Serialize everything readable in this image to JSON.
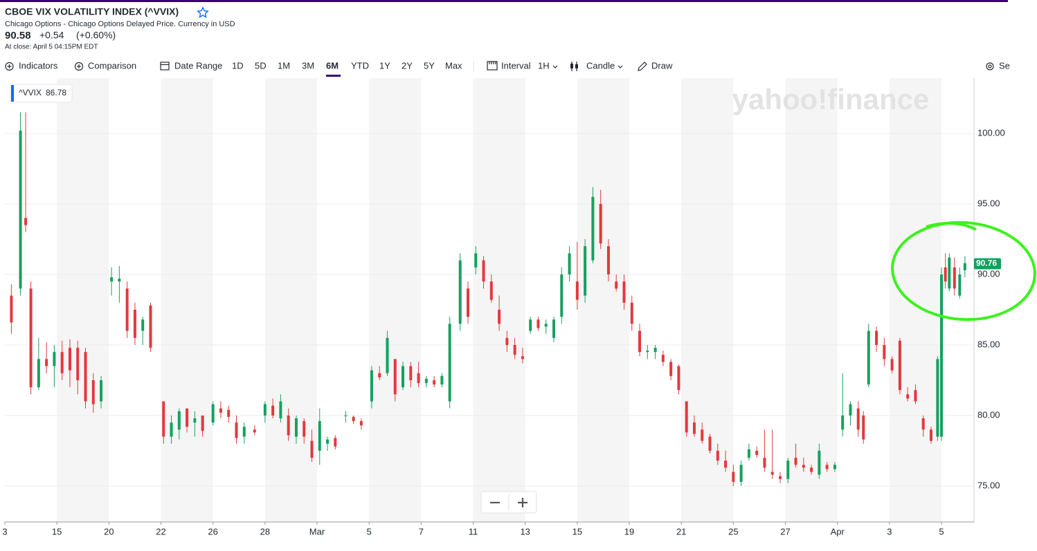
{
  "header": {
    "title": "CBOE VIX VOLATILITY INDEX (^VVIX)",
    "subtitle": "Chicago Options - Chicago Options Delayed Price. Currency in USD",
    "price": "90.58",
    "change": "+0.54",
    "change_pct": "(+0.60%)",
    "close_time": "At close: April 5 04:15PM EDT"
  },
  "toolbar": {
    "indicators": "Indicators",
    "comparison": "Comparison",
    "date_range": "Date Range",
    "ranges": [
      "1D",
      "5D",
      "1M",
      "3M",
      "6M",
      "YTD",
      "1Y",
      "2Y",
      "5Y",
      "Max"
    ],
    "interval": "Interval",
    "interval_value": "1H",
    "chart_type": "Candle",
    "draw": "Draw",
    "settings": "Se"
  },
  "chart_data": {
    "type": "candlestick",
    "legend": {
      "symbol": "^VVIX",
      "value": 86.78
    },
    "watermark": "yahoo!finance",
    "last_price": 90.76,
    "up_color": "#14a15f",
    "down_color": "#e2393d",
    "xlim": [
      0,
      37.25
    ],
    "ylim": [
      72.45,
      103.92
    ],
    "xticks": [
      {
        "value": 0,
        "label": "3"
      },
      {
        "value": 2,
        "label": "15"
      },
      {
        "value": 4,
        "label": "20"
      },
      {
        "value": 6,
        "label": "22"
      },
      {
        "value": 8,
        "label": "26"
      },
      {
        "value": 10,
        "label": "28"
      },
      {
        "value": 12,
        "label": "Mar"
      },
      {
        "value": 14,
        "label": "5"
      },
      {
        "value": 16,
        "label": "7"
      },
      {
        "value": 18,
        "label": "11"
      },
      {
        "value": 20,
        "label": "13"
      },
      {
        "value": 22,
        "label": "15"
      },
      {
        "value": 24,
        "label": "19"
      },
      {
        "value": 26,
        "label": "21"
      },
      {
        "value": 28,
        "label": "25"
      },
      {
        "value": 30,
        "label": "27"
      },
      {
        "value": 32,
        "label": "Apr"
      },
      {
        "value": 34,
        "label": "3"
      },
      {
        "value": 36,
        "label": "5"
      }
    ],
    "yticks": [
      {
        "value": 75,
        "label": "75.00"
      },
      {
        "value": 80,
        "label": "80.00"
      },
      {
        "value": 85,
        "label": "85.00"
      },
      {
        "value": 90,
        "label": "90.00"
      },
      {
        "value": 95,
        "label": "95.00"
      },
      {
        "value": 100,
        "label": "100.00"
      }
    ],
    "grid": true,
    "x": [
      0.25,
      0.6,
      0.8,
      1.0,
      1.3,
      1.6,
      1.9,
      2.2,
      2.5,
      2.8,
      3.1,
      3.4,
      3.7,
      4.1,
      4.4,
      4.7,
      5.0,
      5.3,
      5.6,
      6.1,
      6.4,
      6.7,
      7.0,
      7.3,
      7.6,
      8.0,
      8.3,
      8.6,
      8.9,
      9.2,
      9.6,
      10.0,
      10.3,
      10.6,
      10.9,
      11.2,
      11.5,
      11.8,
      12.1,
      12.4,
      12.7,
      13.1,
      13.4,
      13.7,
      14.1,
      14.4,
      14.7,
      15.0,
      15.3,
      15.6,
      15.9,
      16.2,
      16.5,
      16.8,
      17.1,
      17.5,
      17.8,
      18.1,
      18.4,
      18.7,
      19.0,
      19.3,
      19.6,
      19.9,
      20.2,
      20.5,
      20.8,
      21.1,
      21.4,
      21.7,
      22.0,
      22.3,
      22.6,
      22.9,
      23.2,
      23.5,
      23.8,
      24.1,
      24.4,
      24.7,
      25.0,
      25.3,
      25.6,
      25.9,
      26.2,
      26.5,
      26.8,
      27.1,
      27.4,
      27.7,
      28.0,
      28.3,
      28.6,
      28.9,
      29.2,
      29.5,
      29.8,
      30.1,
      30.4,
      30.7,
      31.0,
      31.3,
      31.6,
      31.9,
      32.2,
      32.5,
      32.8,
      33.0,
      33.2,
      33.5,
      33.8,
      34.1,
      34.4,
      34.7,
      35.0,
      35.3,
      35.6,
      35.85,
      36.0,
      36.15,
      36.3,
      36.5,
      36.7,
      36.9
    ],
    "open": [
      88.5,
      89,
      94,
      89,
      82,
      84,
      83.5,
      84.5,
      84.8,
      84.8,
      84.5,
      82.5,
      81,
      89.5,
      89.5,
      89,
      87.5,
      86,
      87.8,
      81,
      78.5,
      79,
      80.5,
      79.5,
      80,
      79.5,
      80.5,
      80.4,
      79.5,
      78.5,
      79,
      80,
      80.7,
      79.8,
      80,
      78.5,
      79.6,
      78.2,
      77.5,
      78,
      78.4,
      80,
      79.9,
      79.6,
      81,
      83,
      83,
      84,
      82,
      83.5,
      83,
      82.3,
      82.5,
      82.2,
      81,
      86.5,
      89,
      90.5,
      91,
      89.5,
      87.5,
      85.5,
      85,
      84.2,
      86,
      86.8,
      86.3,
      85.5,
      87,
      90,
      89.5,
      88.5,
      91,
      95,
      92,
      89.5,
      89.5,
      88,
      86,
      84.5,
      84.5,
      84.3,
      83.8,
      83.5,
      81,
      79.5,
      79,
      78.5,
      77.5,
      76.8,
      76,
      75.3,
      77,
      77.5,
      77,
      76,
      75.7,
      75.5,
      77,
      76.5,
      76.3,
      75.8,
      76.5,
      76.2,
      79,
      80,
      80.5,
      80,
      82.2,
      86,
      85,
      84,
      85.3,
      81.5,
      81.8,
      79.8,
      79,
      78.5,
      78.5,
      90.5,
      89,
      90.5,
      88.5,
      90.3
    ],
    "high": [
      89.3,
      101.5,
      101.5,
      89.5,
      85.5,
      85.2,
      85,
      85.3,
      85.4,
      85.3,
      84.8,
      83,
      82.8,
      90.5,
      90.6,
      89.5,
      88,
      87,
      88,
      81,
      80,
      80.5,
      80.5,
      80.3,
      80,
      81,
      81,
      80.7,
      80,
      79.5,
      79.3,
      81,
      81.2,
      81.5,
      80.5,
      80,
      79.8,
      79,
      80.5,
      78.5,
      78.6,
      80.3,
      80,
      79.8,
      83.5,
      83.5,
      86,
      84,
      83.8,
      83.8,
      83.8,
      82.8,
      82.8,
      83,
      87,
      91.5,
      89.5,
      92,
      91.3,
      90,
      88.5,
      86,
      85.5,
      84.8,
      87,
      87,
      86.8,
      87,
      90.5,
      92,
      92.3,
      92.5,
      96.2,
      96,
      92.5,
      90,
      90,
      88.5,
      86.5,
      85,
      85,
      84.6,
      84,
      83.6,
      81,
      80,
      79.5,
      78.7,
      78,
      77.5,
      76.5,
      76.8,
      78,
      77.8,
      79,
      79,
      76,
      77,
      78,
      77,
      76.5,
      78,
      76.7,
      76.7,
      83,
      81,
      81,
      80.3,
      86.5,
      86.3,
      85.5,
      84.2,
      85.5,
      82,
      82.2,
      80,
      79.2,
      84.2,
      90.5,
      91.5,
      91.5,
      91.2,
      90.5,
      91.3
    ],
    "low": [
      85.8,
      88.5,
      93,
      81.5,
      81.8,
      83,
      82,
      82.5,
      82,
      81.5,
      80.5,
      80.2,
      80.5,
      88.5,
      88,
      85.5,
      85,
      85,
      84.5,
      78,
      78,
      78.3,
      78.8,
      78.5,
      78.5,
      79.3,
      79.8,
      79.5,
      78,
      78,
      78.6,
      79.5,
      79.8,
      79.5,
      78.2,
      78,
      78,
      76.7,
      76.5,
      77.5,
      77.6,
      79.5,
      79.4,
      79,
      80.5,
      82.5,
      82.8,
      81,
      81.8,
      82,
      82,
      82,
      82,
      82,
      80.5,
      86,
      86.5,
      90,
      89,
      88,
      86,
      84.5,
      84,
      83.7,
      85.8,
      86,
      85.8,
      85.2,
      86.5,
      89.5,
      87.5,
      88,
      90.8,
      91.8,
      89.5,
      88.8,
      87.5,
      86,
      84.2,
      84,
      84,
      83.5,
      82.5,
      81.5,
      78.5,
      78.5,
      78,
      77.3,
      76.5,
      76,
      75,
      75,
      76.8,
      77,
      76,
      75.5,
      75.2,
      75.2,
      76.3,
      76,
      75.8,
      75.5,
      76,
      76,
      78.5,
      79.3,
      78.5,
      78,
      82,
      84.5,
      83.5,
      83,
      81.5,
      81,
      80.8,
      78.5,
      78,
      78.2,
      78.2,
      89,
      88.8,
      88.5,
      88.3,
      89.8
    ],
    "close": [
      86.6,
      100.2,
      93.5,
      82,
      84,
      83.5,
      84.5,
      83,
      83.2,
      82.5,
      81,
      80.8,
      82.5,
      89.8,
      89.7,
      86,
      85.5,
      86.8,
      84.8,
      78.5,
      79.5,
      80.3,
      79.2,
      79.8,
      78.9,
      80.8,
      80.2,
      79.9,
      78.4,
      79.2,
      78.8,
      80.8,
      80,
      81,
      78.6,
      79.8,
      78.5,
      77,
      79.6,
      78.3,
      77.8,
      80,
      79.6,
      79.3,
      83.2,
      82.7,
      85.5,
      81.5,
      83.5,
      82.5,
      82.3,
      82.6,
      82.2,
      82.8,
      86.5,
      91,
      87,
      91.5,
      89.5,
      88.2,
      86.5,
      85,
      84.3,
      84,
      86.8,
      86.2,
      86.5,
      86.8,
      90,
      91.5,
      88.2,
      92,
      95.5,
      92.2,
      90,
      89,
      88,
      86.5,
      84.5,
      84.6,
      84.8,
      83.8,
      82.8,
      81.8,
      78.8,
      78.7,
      78.2,
      77.5,
      76.8,
      76.3,
      75.3,
      76.5,
      77.6,
      77.2,
      76.3,
      75.8,
      75.5,
      76.8,
      76.5,
      76.3,
      76,
      77.5,
      76.2,
      76.5,
      80,
      80.8,
      79,
      78.3,
      86,
      85,
      84,
      83.2,
      81.8,
      81.2,
      81,
      79,
      78.2,
      84,
      90,
      89.5,
      91.2,
      89,
      90,
      90.8
    ]
  }
}
